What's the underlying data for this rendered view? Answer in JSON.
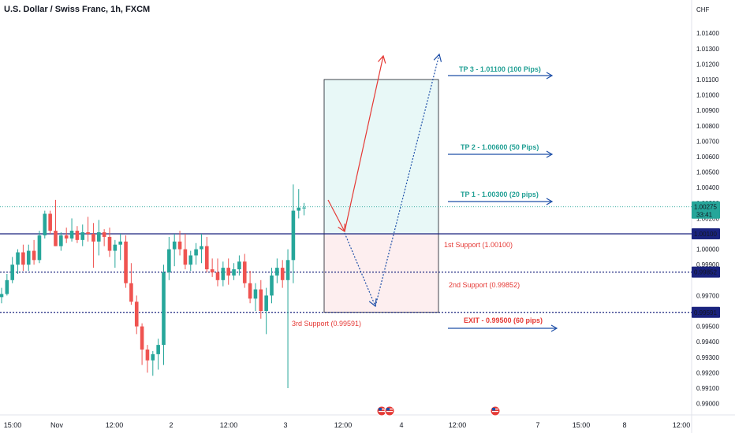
{
  "header": {
    "symbol_title": "U.S. Dollar / Swiss Franc, 1h, FXCM",
    "currency": "CHF"
  },
  "colors": {
    "up": "#26a69a",
    "down": "#ef5350",
    "level_blue": "#1a237e",
    "teal_text": "#22a095",
    "red_text": "#e53935",
    "arrow_blue": "#1e4fa8"
  },
  "chart_data": {
    "type": "candlestick",
    "ylim": [
      0.9896,
      1.0157
    ],
    "y_ticks": [
      1.014,
      1.013,
      1.012,
      1.011,
      1.01,
      1.009,
      1.008,
      1.007,
      1.006,
      1.005,
      1.004,
      1.003,
      1.002,
      1.0,
      0.999,
      0.997,
      0.995,
      0.994,
      0.993,
      0.992,
      0.991,
      0.99
    ],
    "y_tick_labels": [
      "1.01400",
      "1.01300",
      "1.01200",
      "1.01100",
      "1.01000",
      "1.00900",
      "1.00800",
      "1.00700",
      "1.00600",
      "1.00500",
      "1.00400",
      "1.00300",
      "1.00200",
      "1.00000",
      "0.99900",
      "0.99700",
      "0.99500",
      "0.99400",
      "0.99300",
      "0.99200",
      "0.99100",
      "0.99000"
    ],
    "x_tick_labels": [
      "15:00",
      "Nov",
      "12:00",
      "2",
      "12:00",
      "3",
      "12:00",
      "4",
      "12:00",
      "7",
      "15:00",
      "8",
      "12:00"
    ],
    "candles": [
      [
        0.9969,
        0.9975,
        0.9965,
        0.9971
      ],
      [
        0.9971,
        0.9984,
        0.997,
        0.998
      ],
      [
        0.998,
        0.9995,
        0.9978,
        0.999
      ],
      [
        0.999,
        1.0,
        0.9984,
        0.9998
      ],
      [
        0.9998,
        1.0003,
        0.9986,
        0.999
      ],
      [
        0.999,
        1.0003,
        0.9986,
        0.9999
      ],
      [
        0.9999,
        1.0006,
        0.999,
        0.9993
      ],
      [
        0.9993,
        1.0012,
        0.9991,
        1.0009
      ],
      [
        1.0009,
        1.0025,
        1.0007,
        1.0023
      ],
      [
        1.0023,
        1.0025,
        1.001,
        1.0012
      ],
      [
        1.0012,
        1.0032,
        1.0002,
        1.0002
      ],
      [
        1.0002,
        1.0011,
        0.9999,
        1.0009
      ],
      [
        1.0009,
        1.0014,
        1.0004,
        1.0007
      ],
      [
        1.0007,
        1.002,
        1.0005,
        1.0012
      ],
      [
        1.0012,
        1.0015,
        1.0004,
        1.0006
      ],
      [
        1.0006,
        1.0016,
        1.0002,
        1.0011
      ],
      [
        1.0011,
        1.0021,
        1.0005,
        1.001
      ],
      [
        1.001,
        1.0017,
        0.9988,
        1.0005
      ],
      [
        1.0005,
        1.0019,
        0.9996,
        1.0011
      ],
      [
        1.0011,
        1.0013,
        1.0002,
        1.0008
      ],
      [
        1.0008,
        1.0014,
        0.9995,
        0.9999
      ],
      [
        0.9999,
        1.0006,
        0.9988,
        1.0003
      ],
      [
        1.0003,
        1.001,
        0.9993,
        1.0005
      ],
      [
        1.0005,
        1.0009,
        0.9975,
        0.9978
      ],
      [
        0.9978,
        0.9991,
        0.9964,
        0.9966
      ],
      [
        0.9966,
        0.997,
        0.9945,
        0.995
      ],
      [
        0.995,
        0.9952,
        0.9925,
        0.9935
      ],
      [
        0.9935,
        0.9938,
        0.992,
        0.9928
      ],
      [
        0.9928,
        0.9934,
        0.9918,
        0.9932
      ],
      [
        0.9932,
        0.9942,
        0.9922,
        0.9938
      ],
      [
        0.9938,
        0.999,
        0.9925,
        0.9985
      ],
      [
        0.9985,
        1.0008,
        0.998,
        1.0
      ],
      [
        1.0,
        1.001,
        0.9989,
        1.0005
      ],
      [
        1.0005,
        1.0012,
        0.9996,
        1.0
      ],
      [
        1.0,
        1.001,
        0.9987,
        0.999
      ],
      [
        0.999,
        0.9999,
        0.9986,
        0.9996
      ],
      [
        0.9996,
        1.0004,
        0.999,
        1.0
      ],
      [
        1.0,
        1.001,
        0.9991,
        1.0002
      ],
      [
        1.0002,
        1.0008,
        0.9985,
        0.9987
      ],
      [
        0.9987,
        0.9994,
        0.9982,
        0.9985
      ],
      [
        0.9985,
        0.9994,
        0.9976,
        0.998
      ],
      [
        0.998,
        0.9992,
        0.9976,
        0.9988
      ],
      [
        0.9988,
        0.9994,
        0.9977,
        0.9983
      ],
      [
        0.9983,
        0.9991,
        0.998,
        0.9987
      ],
      [
        0.9987,
        0.9996,
        0.9983,
        0.9992
      ],
      [
        0.9992,
        0.9997,
        0.9975,
        0.9978
      ],
      [
        0.9978,
        0.9986,
        0.9965,
        0.9968
      ],
      [
        0.9968,
        0.9978,
        0.996,
        0.9974
      ],
      [
        0.9974,
        0.998,
        0.9955,
        0.996
      ],
      [
        0.996,
        0.9975,
        0.9945,
        0.997
      ],
      [
        0.997,
        0.9988,
        0.9965,
        0.9983
      ],
      [
        0.9983,
        0.9994,
        0.9978,
        0.9988
      ],
      [
        0.9988,
        0.9993,
        0.9975,
        0.998
      ],
      [
        0.998,
        1.0,
        0.991,
        0.9993
      ],
      [
        0.9993,
        1.0042,
        0.9978,
        1.0025
      ],
      [
        1.0025,
        1.0039,
        1.002,
        1.0027
      ],
      [
        1.0027,
        1.003,
        1.0022,
        1.0027
      ]
    ],
    "horizontal_levels": [
      {
        "value": 1.001,
        "label": "1.00100",
        "style": "solid"
      },
      {
        "value": 0.99852,
        "label": "0.99852",
        "style": "dotted"
      },
      {
        "value": 0.99591,
        "label": "0.99591",
        "style": "dotted"
      }
    ],
    "current_price": {
      "value": 1.00275,
      "label": "1.00275",
      "countdown": "33:41"
    },
    "target_box": {
      "top": 1.011,
      "entry": 1.001,
      "bottom": 0.99591
    },
    "annotations": {
      "tp3": "TP 3 - 1.01100 (100 Pips)",
      "tp2": "TP 2 - 1.00600 (50 Pips)",
      "tp1": "TP 1 - 1.00300 (20 pips)",
      "support1": "1st Support (1.00100)",
      "support2": "2nd Support (0.99852)",
      "support3": "3rd Support (0.99591)",
      "exit": "EXIT - 0.99500 (60 pips)"
    }
  }
}
